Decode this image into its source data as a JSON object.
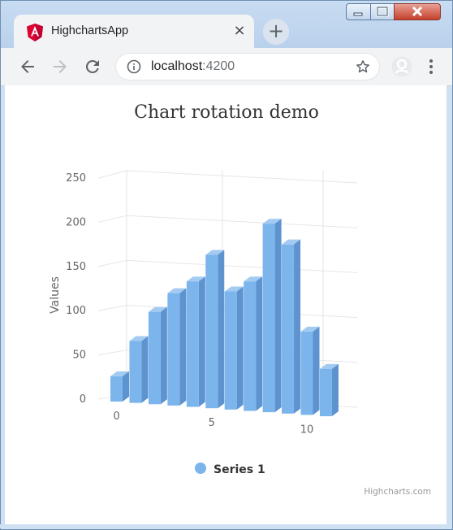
{
  "browser": {
    "tab_title": "HighchartsApp",
    "tab_close": "×",
    "new_tab": "+",
    "url_host": "localhost",
    "url_port": ":4200"
  },
  "chart_data": {
    "type": "bar",
    "title": "Chart rotation demo",
    "ylabel": "Values",
    "ylim": [
      0,
      250
    ],
    "yticks": [
      0,
      50,
      100,
      150,
      200,
      250
    ],
    "xticks": [
      0,
      5,
      10
    ],
    "series": [
      {
        "name": "Series 1",
        "values": [
          29,
          71,
          106,
          129,
          144,
          176,
          135.6,
          148.5,
          216.4,
          194.1,
          95.6,
          54.4
        ]
      }
    ],
    "legend_position": "bottom",
    "grid": true,
    "credits": "Highcharts.com",
    "colors": {
      "bar": "#7cb5ec",
      "bar_top": "#a3cbf2",
      "bar_side": "#5d93cf",
      "grid": "#e6e6e6",
      "axis_text": "#666666"
    }
  }
}
